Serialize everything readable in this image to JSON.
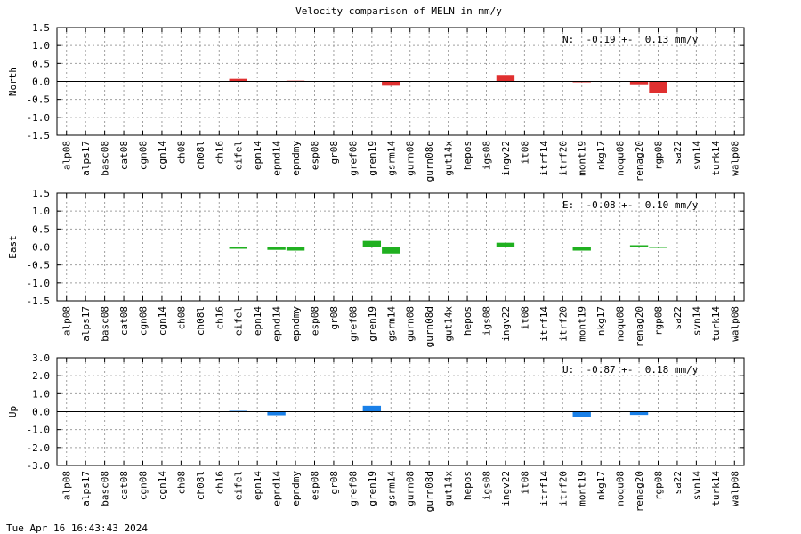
{
  "timestamp": "Tue Apr 16 16:43:43 2024",
  "chart_data": {
    "type": "bar",
    "title": "Velocity comparison of MELN in mm/y",
    "categories": [
      "alp08",
      "alps17",
      "basc08",
      "cat08",
      "cgn08",
      "cgn14",
      "ch08",
      "ch08l",
      "ch16",
      "eifel",
      "epn14",
      "epnd14",
      "epndmy",
      "esp08",
      "gr08",
      "gref08",
      "gren19",
      "gsrm14",
      "gurn08",
      "gurn08d",
      "gut14x",
      "hepos",
      "igs08",
      "ingv22",
      "it08",
      "itrf14",
      "itrf20",
      "mont19",
      "nkg17",
      "noqu08",
      "renag20",
      "rgp08",
      "sa22",
      "svn14",
      "turk14",
      "walp08"
    ],
    "panels": [
      {
        "ylabel": "North",
        "color": "#e03030",
        "ylim": [
          -1.5,
          1.5
        ],
        "yticks": [
          -1.5,
          -1.0,
          -0.5,
          0.0,
          0.5,
          1.0,
          1.5
        ],
        "ytick_labels": [
          "-1.5",
          "-1.0",
          "-0.5",
          "0.0",
          "0.5",
          "1.0",
          "1.5"
        ],
        "stat": "N:  -0.19 +-  0.13 mm/y",
        "values": [
          0,
          0,
          0,
          0,
          0,
          0,
          0,
          0,
          0,
          0.07,
          0,
          0,
          0.02,
          0,
          0,
          0,
          0,
          -0.12,
          0,
          0,
          0,
          0,
          0,
          0.18,
          0,
          0,
          0,
          -0.02,
          0,
          0,
          -0.08,
          -0.33,
          0,
          0,
          0,
          0
        ]
      },
      {
        "ylabel": "East",
        "color": "#20b020",
        "ylim": [
          -1.5,
          1.5
        ],
        "yticks": [
          -1.5,
          -1.0,
          -0.5,
          0.0,
          0.5,
          1.0,
          1.5
        ],
        "ytick_labels": [
          "-1.5",
          "-1.0",
          "-0.5",
          "0.0",
          "0.5",
          "1.0",
          "1.5"
        ],
        "stat": "E:  -0.08 +-  0.10 mm/y",
        "values": [
          0,
          0,
          0,
          0,
          0,
          0,
          0,
          0,
          0,
          -0.05,
          0,
          -0.08,
          -0.1,
          0,
          0,
          0,
          0.17,
          -0.18,
          0,
          0,
          0,
          0,
          0,
          0.12,
          0,
          0,
          0,
          -0.1,
          0,
          0,
          0.05,
          -0.02,
          0,
          0,
          0,
          0
        ]
      },
      {
        "ylabel": "Up",
        "color": "#1a80e8",
        "ylim": [
          -3.0,
          3.0
        ],
        "yticks": [
          -3.0,
          -2.0,
          -1.0,
          0.0,
          1.0,
          2.0,
          3.0
        ],
        "ytick_labels": [
          "-3.0",
          "-2.0",
          "-1.0",
          "0.0",
          "1.0",
          "2.0",
          "3.0"
        ],
        "stat": "U:  -0.87 +-  0.18 mm/y",
        "values": [
          0,
          0,
          0,
          0,
          0,
          0,
          0,
          0,
          0,
          0.05,
          0,
          -0.2,
          0,
          0,
          0,
          0,
          0.33,
          0,
          0,
          0,
          0,
          0,
          0,
          0,
          0,
          0,
          0,
          -0.28,
          0,
          0,
          -0.18,
          0,
          0,
          0,
          0,
          0
        ]
      }
    ]
  }
}
